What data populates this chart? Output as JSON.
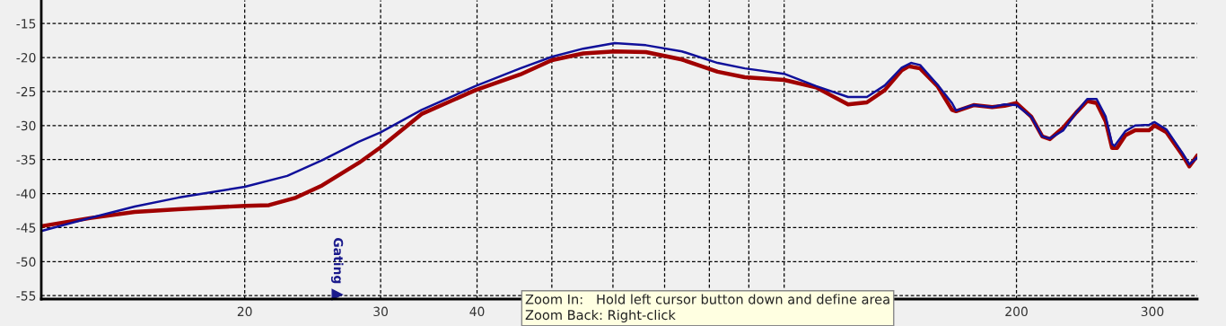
{
  "chart_data": {
    "type": "line",
    "log": "x",
    "grid": true,
    "xlim": [
      10.9,
      343
    ],
    "ylim": [
      -55.5,
      -11.6
    ],
    "xticks": [
      20,
      30,
      40,
      {
        "value": 50,
        "label": null
      },
      {
        "value": 60,
        "label": null
      },
      {
        "value": 70,
        "label": null
      },
      {
        "value": 80,
        "label": null
      },
      {
        "value": 90,
        "label": null
      },
      {
        "value": 100,
        "label": null
      },
      200,
      300
    ],
    "yticks": [
      -55,
      -50,
      -45,
      -40,
      -35,
      -30,
      -25,
      -20,
      -15
    ],
    "series": [
      {
        "color": "#a00000",
        "x": [
          10.9,
          12.6,
          14.4,
          16.4,
          20,
          21.5,
          23.3,
          25.2,
          28.1,
          30,
          33.9,
          39.8,
          45.5,
          50,
          54.9,
          60.3,
          66.2,
          73.7,
          82,
          88.9,
          100,
          110,
          121,
          128,
          135,
          142,
          145,
          150,
          158,
          165,
          167,
          176,
          186,
          193,
          200,
          209,
          216,
          221,
          230,
          239,
          247,
          254,
          261,
          266,
          270,
          277,
          285,
          297,
          302,
          313,
          328,
          335,
          343
        ],
        "values": [
          -44.8,
          -43.6,
          -42.7,
          -42.3,
          -41.8,
          -41.7,
          -40.6,
          -38.8,
          -35.5,
          -33.2,
          -28.3,
          -24.8,
          -22.5,
          -20.4,
          -19.4,
          -19.1,
          -19.2,
          -20.3,
          -22.1,
          -22.9,
          -23.3,
          -24.4,
          -26.9,
          -26.6,
          -24.8,
          -21.9,
          -21.3,
          -21.6,
          -24.2,
          -27.7,
          -27.9,
          -27.0,
          -27.3,
          -27.1,
          -26.7,
          -28.7,
          -31.6,
          -32.0,
          -30.3,
          -28.1,
          -26.4,
          -26.7,
          -29.4,
          -33.3,
          -33.3,
          -31.4,
          -30.7,
          -30.7,
          -30.0,
          -31.0,
          -34.3,
          -36.0,
          -34.4
        ]
      },
      {
        "color": "#10109a",
        "x": [
          10.9,
          12.6,
          14.4,
          16.4,
          20,
          22.7,
          25.2,
          28.1,
          30,
          33.9,
          39.8,
          45.5,
          50,
          54.9,
          60.3,
          66.2,
          73.7,
          82,
          88.9,
          100,
          110,
          121,
          128,
          135,
          142,
          146,
          150,
          158,
          165,
          167,
          176,
          186,
          193,
          200,
          209,
          216,
          221,
          230,
          239,
          247,
          254,
          261,
          266,
          268,
          277,
          285,
          297,
          302,
          313,
          328,
          335,
          343
        ],
        "values": [
          -45.5,
          -43.6,
          -41.9,
          -40.6,
          -39.0,
          -37.4,
          -35.1,
          -32.4,
          -31.0,
          -27.7,
          -24.2,
          -21.6,
          -19.9,
          -18.7,
          -17.9,
          -18.2,
          -19.1,
          -20.8,
          -21.6,
          -22.4,
          -24.2,
          -25.8,
          -25.8,
          -24.1,
          -21.5,
          -20.8,
          -21.1,
          -24.0,
          -26.7,
          -27.8,
          -27.0,
          -27.3,
          -26.9,
          -27.0,
          -28.7,
          -31.6,
          -31.9,
          -30.7,
          -28.1,
          -26.1,
          -26.1,
          -28.7,
          -32.7,
          -33.0,
          -30.8,
          -30.0,
          -29.9,
          -29.5,
          -30.6,
          -34.0,
          -35.7,
          -34.7
        ]
      }
    ],
    "annotations": [
      "Gating",
      "Zoom In:   Hold left cursor button down and define area\nZoom Back: Right-click"
    ]
  }
}
